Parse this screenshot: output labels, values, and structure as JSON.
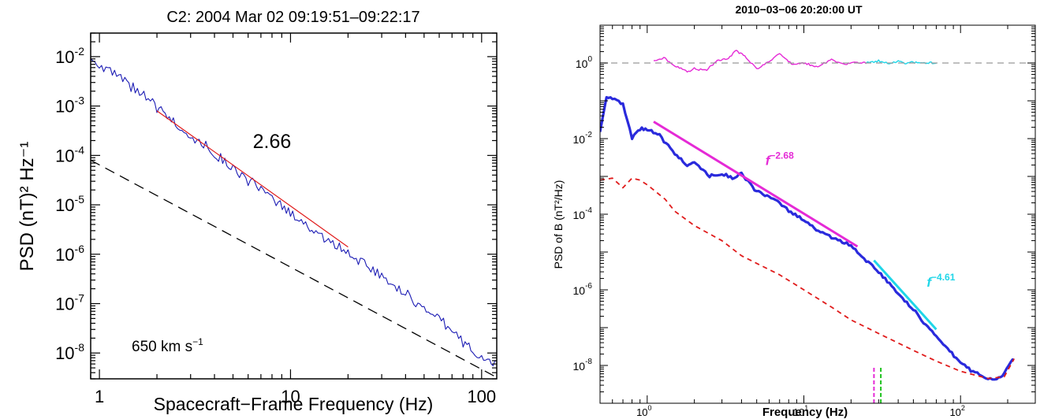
{
  "chart_data": [
    {
      "type": "line",
      "title": "C2: 2004 Mar 02 09:19:51–09:22:17",
      "xlabel": "Spacecraft−Frame Frequency (Hz)",
      "ylabel": "PSD (nT)² Hz⁻¹",
      "xscale": "log",
      "yscale": "log",
      "xlim": [
        0.9,
        120
      ],
      "ylim": [
        3e-09,
        0.03
      ],
      "x_tick_labels": [
        {
          "value": 1,
          "label": "1"
        },
        {
          "value": 10,
          "label": "10"
        },
        {
          "value": 100,
          "label": "100"
        }
      ],
      "y_tick_labels": [
        {
          "value": 0.01,
          "base": "10",
          "exp": "-2"
        },
        {
          "value": 0.001,
          "base": "10",
          "exp": "-3"
        },
        {
          "value": 0.0001,
          "base": "10",
          "exp": "-4"
        },
        {
          "value": 1e-05,
          "base": "10",
          "exp": "-5"
        },
        {
          "value": 1e-06,
          "base": "10",
          "exp": "-6"
        },
        {
          "value": 1e-07,
          "base": "10",
          "exp": "-7"
        },
        {
          "value": 1e-08,
          "base": "10",
          "exp": "-8"
        }
      ],
      "annotations": {
        "slope": "2.66",
        "speed_value": "650 km s",
        "speed_exp": "−1"
      },
      "series": [
        {
          "role": "spectrum",
          "color": "#1c1cb4",
          "x": [
            0.9,
            1.2,
            1.5,
            2,
            2.5,
            3,
            4,
            5,
            6,
            7,
            8,
            10,
            12,
            15,
            20,
            25,
            30,
            40,
            50,
            60,
            70,
            80,
            90,
            100,
            110,
            120
          ],
          "y": [
            0.009,
            0.0045,
            0.0022,
            0.00095,
            0.00045,
            0.00025,
            0.00011,
            5.5e-05,
            3.2e-05,
            2e-05,
            1.3e-05,
            6.5e-06,
            4e-06,
            2.2e-06,
            1.1e-06,
            6e-07,
            3.5e-07,
            1.6e-07,
            8e-08,
            4.5e-08,
            2.8e-08,
            1.8e-08,
            1.1e-08,
            8e-09,
            6.5e-09,
            6e-09
          ]
        },
        {
          "role": "fit",
          "color": "#e01b1b",
          "x": [
            2,
            20
          ],
          "y": [
            0.0008,
            1.4e-06
          ]
        },
        {
          "role": "reference",
          "color": "#000000",
          "dash": true,
          "x": [
            0.9,
            120
          ],
          "y": [
            8e-05,
            3.2e-09
          ]
        }
      ]
    },
    {
      "type": "line",
      "title": "2010−03−06  20:20:00 UT",
      "xlabel": "Frequency (Hz)",
      "ylabel": "PSD of B (nT²/Hz)",
      "xscale": "log",
      "yscale": "log",
      "xlim": [
        0.5,
        300
      ],
      "ylim": [
        1e-09,
        10
      ],
      "x_tick_labels": [
        {
          "value": 1,
          "base": "10",
          "exp": "0"
        },
        {
          "value": 10,
          "base": "10",
          "exp": "1"
        },
        {
          "value": 100,
          "base": "10",
          "exp": "2"
        }
      ],
      "y_tick_labels": [
        {
          "value": 1,
          "base": "10",
          "exp": "0"
        },
        {
          "value": 0.01,
          "base": "10",
          "exp": "-2"
        },
        {
          "value": 0.0001,
          "base": "10",
          "exp": "-4"
        },
        {
          "value": 1e-06,
          "base": "10",
          "exp": "-6"
        },
        {
          "value": 1e-08,
          "base": "10",
          "exp": "-8"
        }
      ],
      "annotations": [
        {
          "base": "f",
          "exp": "−2.68",
          "color": "#e52ad6",
          "x": 7,
          "y": 0.002
        },
        {
          "base": "f",
          "exp": "−4.61",
          "color": "#1fd6e8",
          "x": 75,
          "y": 1.2e-06
        }
      ],
      "series": [
        {
          "role": "spectrum",
          "color": "#2a2adc",
          "x": [
            0.5,
            0.55,
            0.6,
            0.7,
            0.8,
            0.9,
            1.0,
            1.2,
            1.5,
            1.8,
            2.0,
            2.5,
            3.0,
            3.5,
            4,
            5,
            6,
            7,
            8,
            10,
            12,
            15,
            20,
            25,
            30,
            40,
            50,
            60,
            70,
            80,
            100,
            120,
            150,
            170,
            190,
            210,
            220
          ],
          "y": [
            0.015,
            0.13,
            0.12,
            0.08,
            0.01,
            0.018,
            0.017,
            0.012,
            0.004,
            0.002,
            0.0025,
            0.001,
            0.0012,
            0.0009,
            0.0012,
            0.0004,
            0.00028,
            0.0002,
            0.00012,
            7e-05,
            4e-05,
            2.5e-05,
            1.5e-05,
            6e-06,
            3e-06,
            8e-07,
            3e-07,
            1.2e-07,
            6e-08,
            3e-08,
            1.2e-08,
            7e-09,
            4.5e-09,
            4.2e-09,
            6e-09,
            1.3e-08,
            1.5e-08
          ]
        },
        {
          "role": "noise",
          "color": "#e01b1b",
          "dash": true,
          "x": [
            0.5,
            0.6,
            0.7,
            0.8,
            0.9,
            1,
            1.3,
            1.5,
            2,
            3,
            4,
            5,
            7,
            10,
            15,
            20,
            30,
            50,
            70,
            100,
            150,
            190,
            220
          ],
          "y": [
            0.0008,
            0.0009,
            0.0005,
            0.0009,
            0.0008,
            0.0006,
            0.00025,
            0.00012,
            5e-05,
            2e-05,
            8e-06,
            5e-06,
            2.5e-06,
            1e-06,
            3.5e-07,
            1.6e-07,
            7e-08,
            2.5e-08,
            1.3e-08,
            7e-09,
            4.5e-09,
            5e-09,
            1.5e-08
          ]
        },
        {
          "role": "fit",
          "color": "#e52ad6",
          "x": [
            1.1,
            22
          ],
          "y": [
            0.028,
            1.4e-05
          ]
        },
        {
          "role": "fit",
          "color": "#1fd6e8",
          "x": [
            28,
            70
          ],
          "y": [
            6e-06,
            9e-08
          ]
        },
        {
          "role": "ratio",
          "color": "#e52ad6",
          "x": [
            1.1,
            1.3,
            1.5,
            1.8,
            2,
            2.4,
            2.8,
            3.3,
            3.7,
            4.2,
            5,
            6,
            7,
            8.5,
            10,
            12,
            15,
            18,
            21,
            25
          ],
          "y": [
            1.15,
            1.35,
            0.85,
            0.6,
            0.7,
            0.65,
            1.2,
            1.3,
            2.2,
            1.5,
            0.7,
            1.1,
            1.8,
            0.9,
            1.0,
            0.8,
            1.2,
            0.9,
            1.05,
            1.0
          ]
        },
        {
          "role": "ratio",
          "color": "#1fd6e8",
          "x": [
            25,
            30,
            35,
            40,
            45,
            50,
            55,
            60,
            65,
            70
          ],
          "y": [
            1.0,
            1.12,
            1.0,
            1.1,
            0.95,
            1.05,
            1.0,
            1.02,
            1.0,
            1.0
          ]
        },
        {
          "role": "unity",
          "color": "#999999",
          "dash": true,
          "x": [
            0.5,
            300
          ],
          "y": [
            1,
            1
          ]
        },
        {
          "role": "marker",
          "color": "#e52ad6",
          "dash": true,
          "x": [
            28,
            28
          ],
          "y": [
            1e-09,
            1e-08
          ]
        },
        {
          "role": "marker",
          "color": "#1fc11f",
          "dash": true,
          "x": [
            31,
            31
          ],
          "y": [
            1e-09,
            1e-08
          ]
        }
      ]
    }
  ]
}
